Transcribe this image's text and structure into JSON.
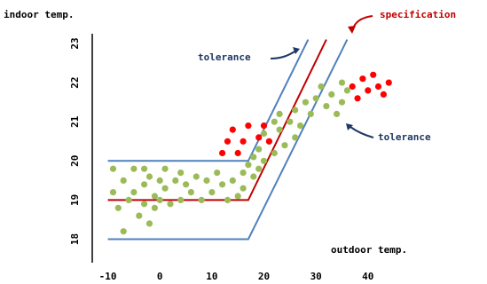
{
  "chart_data": {
    "type": "scatter",
    "title": "",
    "xlabel": "outdoor temp.",
    "ylabel": "indoor temp.",
    "xlim": [
      -13,
      46
    ],
    "ylim": [
      17.4,
      23.25
    ],
    "x_ticks": [
      "-10",
      "0",
      "10",
      "20",
      "30",
      "40"
    ],
    "y_ticks": [
      "18",
      "19",
      "20",
      "21",
      "22",
      "23"
    ],
    "colors": {
      "specification": "#c00000",
      "tolerance": "#4f81bd",
      "green_points": "#9bbb59",
      "red_points": "#ff0000",
      "annotation_text_spec": "#c00000",
      "annotation_text_tol": "#1f3864"
    },
    "annotations": {
      "specification": "specification",
      "tolerance_upper": "tolerance",
      "tolerance_lower": "tolerance"
    },
    "lines": {
      "specification": [
        [
          -10,
          19.0
        ],
        [
          17,
          19.0
        ],
        [
          32,
          23.1
        ]
      ],
      "tolerance_upper": [
        [
          -10,
          20.0
        ],
        [
          17,
          20.0
        ],
        [
          28.5,
          23.1
        ]
      ],
      "tolerance_lower": [
        [
          -10,
          18.0
        ],
        [
          17,
          18.0
        ],
        [
          36,
          23.1
        ]
      ]
    },
    "series": [
      {
        "color_key": "green_points",
        "points": [
          [
            -9,
            19.8
          ],
          [
            -9,
            19.2
          ],
          [
            -8,
            18.8
          ],
          [
            -7,
            19.5
          ],
          [
            -6,
            19.0
          ],
          [
            -5,
            19.8
          ],
          [
            -5,
            19.2
          ],
          [
            -4,
            18.6
          ],
          [
            -3,
            19.4
          ],
          [
            -3,
            18.9
          ],
          [
            -2,
            19.6
          ],
          [
            -1,
            19.1
          ],
          [
            -1,
            18.8
          ],
          [
            0,
            19.5
          ],
          [
            0,
            19.0
          ],
          [
            1,
            19.8
          ],
          [
            1,
            19.3
          ],
          [
            2,
            18.9
          ],
          [
            3,
            19.5
          ],
          [
            4,
            19.7
          ],
          [
            4,
            19.0
          ],
          [
            5,
            19.4
          ],
          [
            6,
            19.2
          ],
          [
            7,
            19.6
          ],
          [
            8,
            19.0
          ],
          [
            9,
            19.5
          ],
          [
            10,
            19.2
          ],
          [
            11,
            19.7
          ],
          [
            12,
            19.4
          ],
          [
            13,
            19.0
          ],
          [
            14,
            19.5
          ],
          [
            15,
            19.1
          ],
          [
            16,
            19.7
          ],
          [
            16,
            19.3
          ],
          [
            17,
            19.9
          ],
          [
            18,
            20.1
          ],
          [
            18,
            19.6
          ],
          [
            19,
            20.3
          ],
          [
            19,
            19.8
          ],
          [
            20,
            20.0
          ],
          [
            20,
            20.7
          ],
          [
            21,
            20.5
          ],
          [
            22,
            21.0
          ],
          [
            22,
            20.2
          ],
          [
            23,
            20.8
          ],
          [
            23,
            21.2
          ],
          [
            24,
            20.4
          ],
          [
            25,
            21.0
          ],
          [
            26,
            21.3
          ],
          [
            26,
            20.6
          ],
          [
            27,
            20.9
          ],
          [
            28,
            21.5
          ],
          [
            29,
            21.2
          ],
          [
            30,
            21.6
          ],
          [
            31,
            21.9
          ],
          [
            32,
            21.4
          ],
          [
            33,
            21.7
          ],
          [
            34,
            21.2
          ],
          [
            35,
            21.5
          ],
          [
            35,
            22.0
          ],
          [
            36,
            21.8
          ],
          [
            -3,
            19.8
          ],
          [
            -7,
            18.2
          ],
          [
            -2,
            18.4
          ]
        ]
      },
      {
        "color_key": "red_points",
        "points": [
          [
            12,
            20.2
          ],
          [
            13,
            20.5
          ],
          [
            14,
            20.8
          ],
          [
            15,
            20.2
          ],
          [
            16,
            20.5
          ],
          [
            17,
            20.9
          ],
          [
            19,
            20.6
          ],
          [
            20,
            20.9
          ],
          [
            21,
            20.5
          ],
          [
            37,
            21.9
          ],
          [
            38,
            21.6
          ],
          [
            39,
            22.1
          ],
          [
            40,
            21.8
          ],
          [
            41,
            22.2
          ],
          [
            42,
            21.9
          ],
          [
            43,
            21.7
          ],
          [
            44,
            22.0
          ]
        ]
      }
    ]
  }
}
